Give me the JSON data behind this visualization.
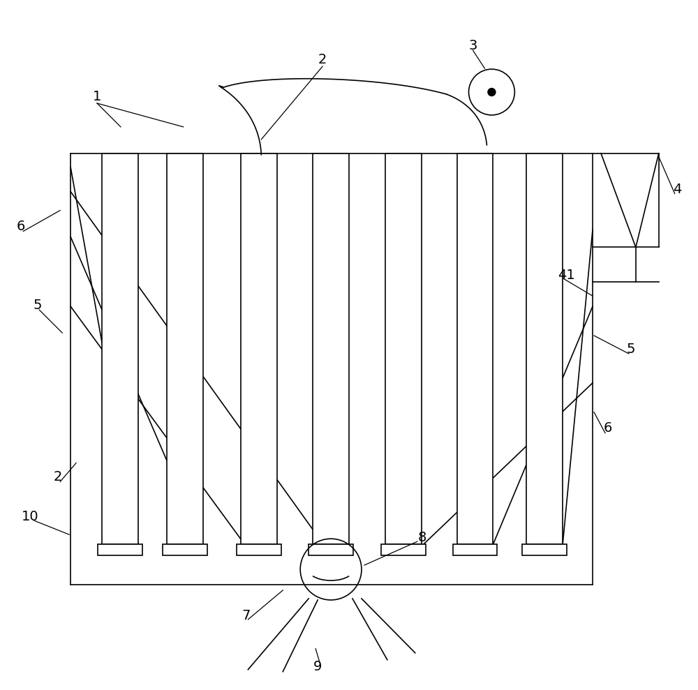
{
  "bg_color": "#ffffff",
  "line_color": "#000000",
  "line_width": 1.2,
  "fig_width": 10.0,
  "fig_height": 9.89
}
